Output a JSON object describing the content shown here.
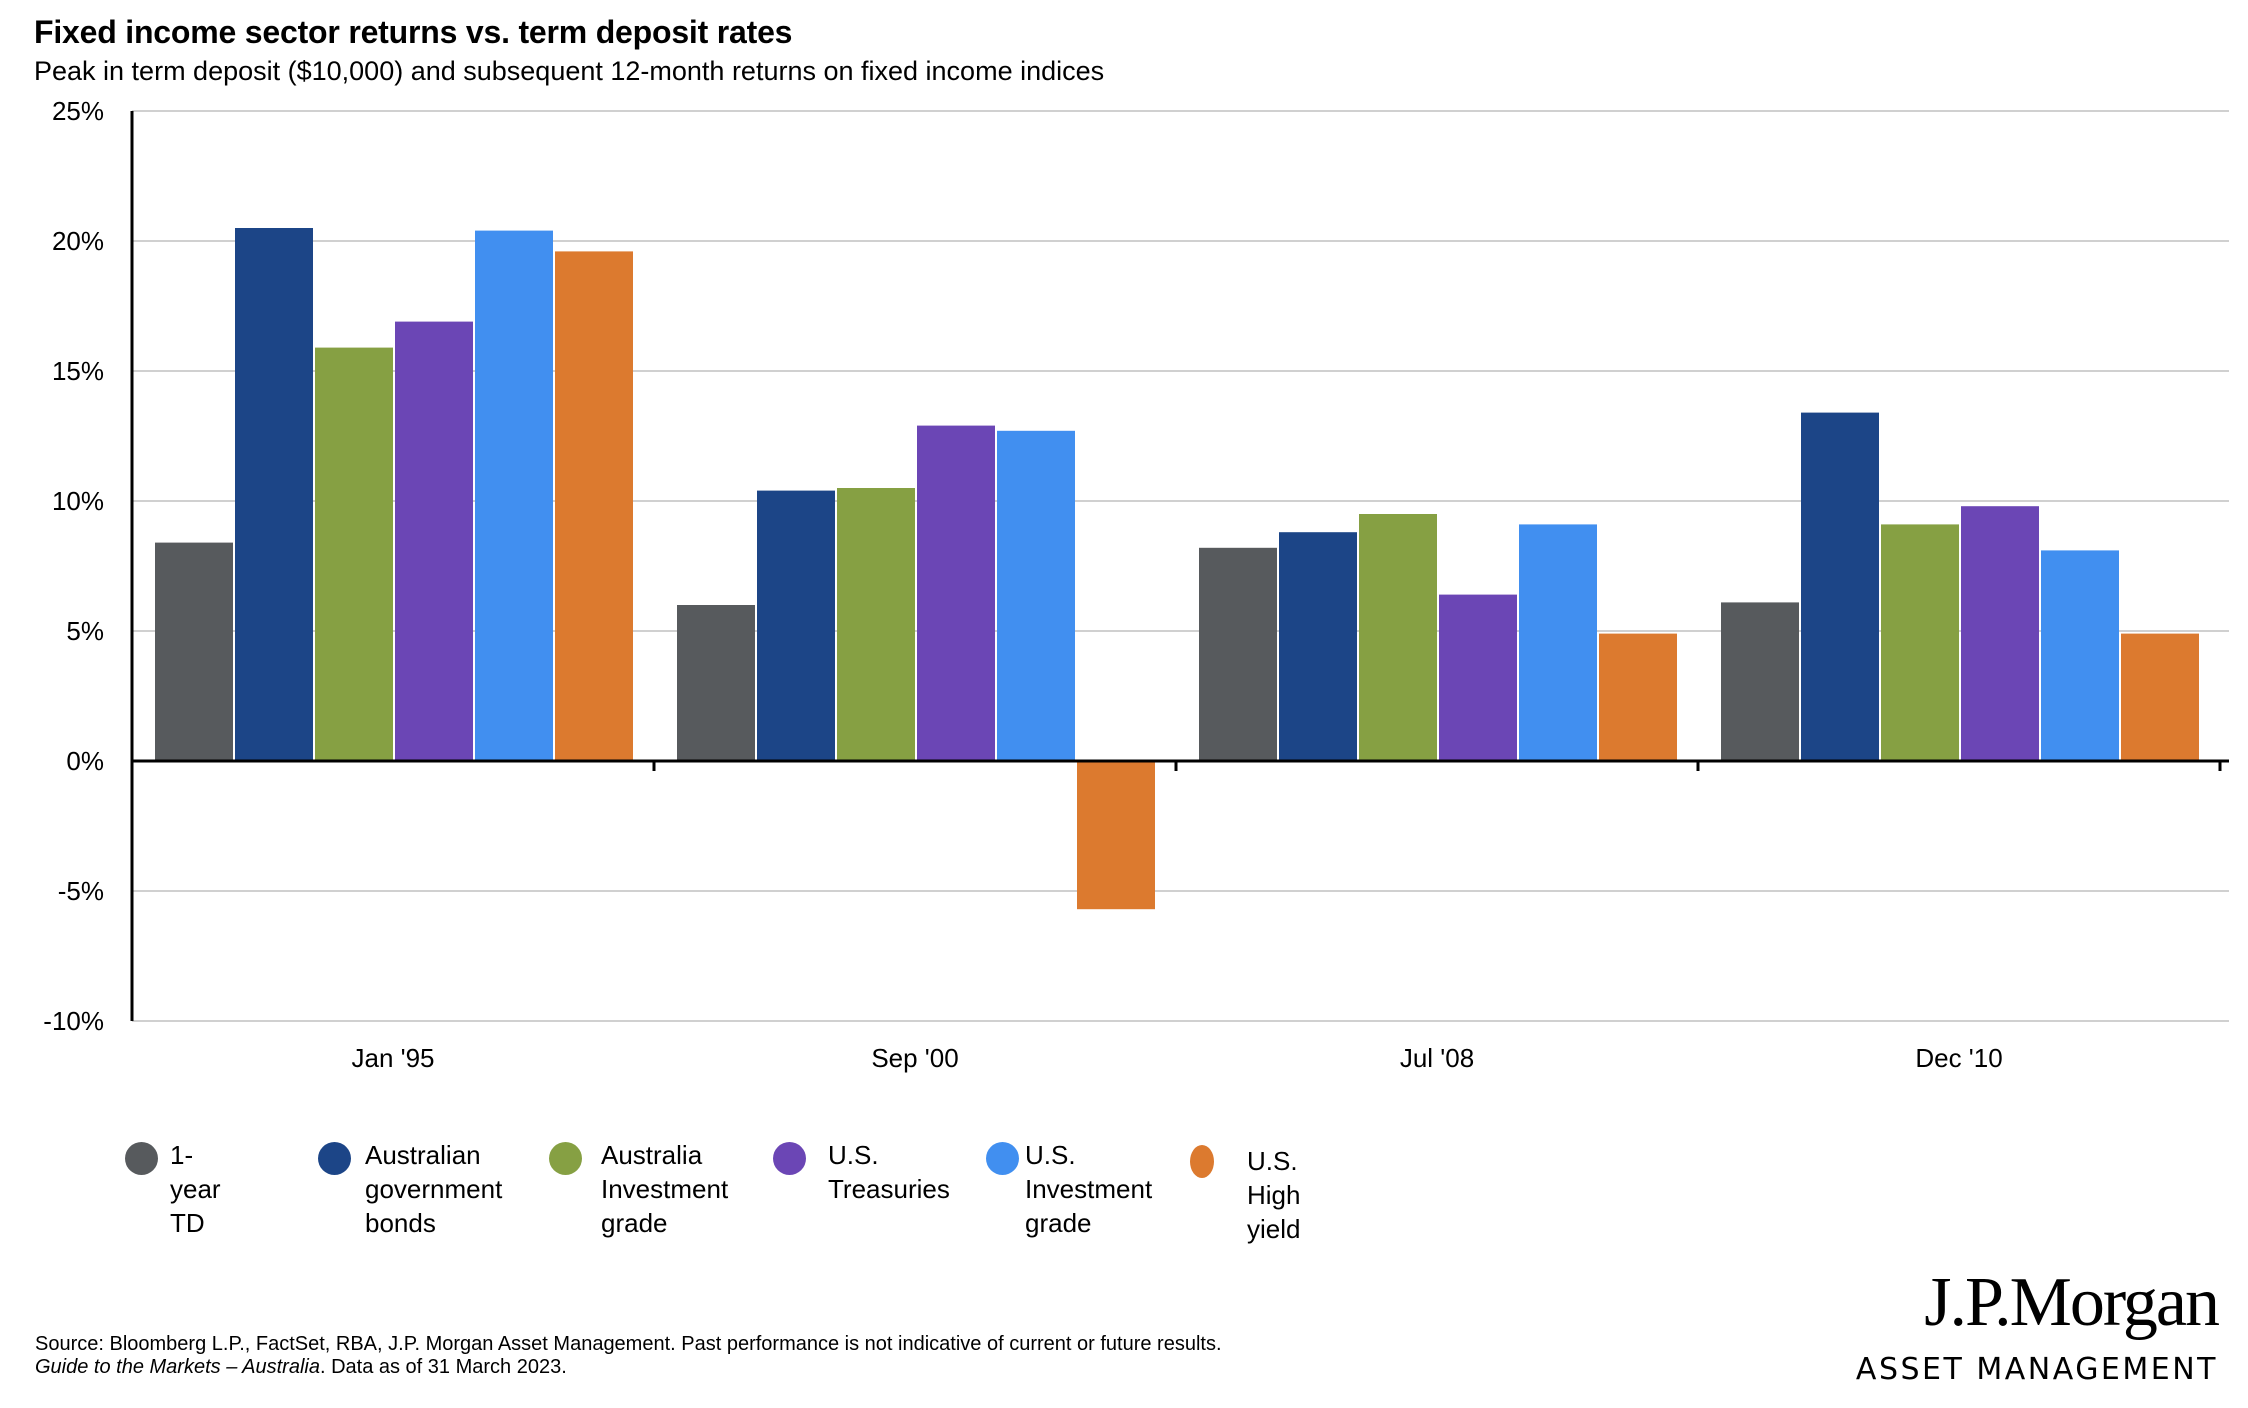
{
  "header": {
    "title": "Fixed income sector returns vs. term deposit rates",
    "subtitle": "Peak in term deposit ($10,000) and subsequent 12-month returns on fixed income indices"
  },
  "chart_data": {
    "type": "bar",
    "title": "Fixed income sector returns vs. term deposit rates",
    "subtitle": "Peak in term deposit ($10,000) and subsequent 12-month returns on fixed income indices",
    "xlabel": "",
    "ylabel": "",
    "categories": [
      "Jan '95",
      "Sep '00",
      "Jul '08",
      "Dec '10"
    ],
    "ylim": [
      -10,
      25
    ],
    "yticks": [
      25,
      20,
      15,
      10,
      5,
      0,
      -5,
      -10
    ],
    "ytick_labels": [
      "25%",
      "20%",
      "15%",
      "10%",
      "5%",
      "0%",
      "-5%",
      "-10%"
    ],
    "grid": true,
    "legend_position": "bottom-left",
    "series": [
      {
        "name": "1-year TD",
        "color": "#575a5d",
        "values": [
          8.4,
          6.0,
          8.2,
          6.1
        ]
      },
      {
        "name": "Australian government bonds",
        "color": "#1c4587",
        "values": [
          20.5,
          10.4,
          8.8,
          13.4
        ]
      },
      {
        "name": "Australia Investment grade",
        "color": "#86a043",
        "values": [
          15.9,
          10.5,
          9.5,
          9.1
        ]
      },
      {
        "name": "U.S. Treasuries",
        "color": "#6b46b5",
        "values": [
          16.9,
          12.9,
          6.4,
          9.8
        ]
      },
      {
        "name": "U.S. Investment grade",
        "color": "#418ff0",
        "values": [
          20.4,
          12.7,
          9.1,
          8.1
        ]
      },
      {
        "name": "U.S. High yield",
        "color": "#dc7a2f",
        "values": [
          19.6,
          -5.7,
          4.9,
          4.9
        ]
      }
    ]
  },
  "legend": [
    {
      "label": "1-year TD",
      "color": "#575a5d"
    },
    {
      "label": "Australian\ngovernment\nbonds",
      "color": "#1c4587"
    },
    {
      "label": "Australia\nInvestment\ngrade",
      "color": "#86a043"
    },
    {
      "label": "U.S.\nTreasuries",
      "color": "#6b46b5"
    },
    {
      "label": "U.S.\nInvestment\ngrade",
      "color": "#418ff0"
    },
    {
      "label": "U.S.\nHigh\nyield",
      "color": "#dc7a2f"
    }
  ],
  "footer": {
    "source": "Source: Bloomberg L.P., FactSet, RBA, J.P. Morgan Asset Management. Past performance is not indicative of current or future results.",
    "guide_italic": "Guide to the Markets – Australia",
    "guide_rest": ". Data as of 31 March 2023."
  },
  "logo": {
    "brand": "J.P.Morgan",
    "division": "ASSET MANAGEMENT"
  }
}
